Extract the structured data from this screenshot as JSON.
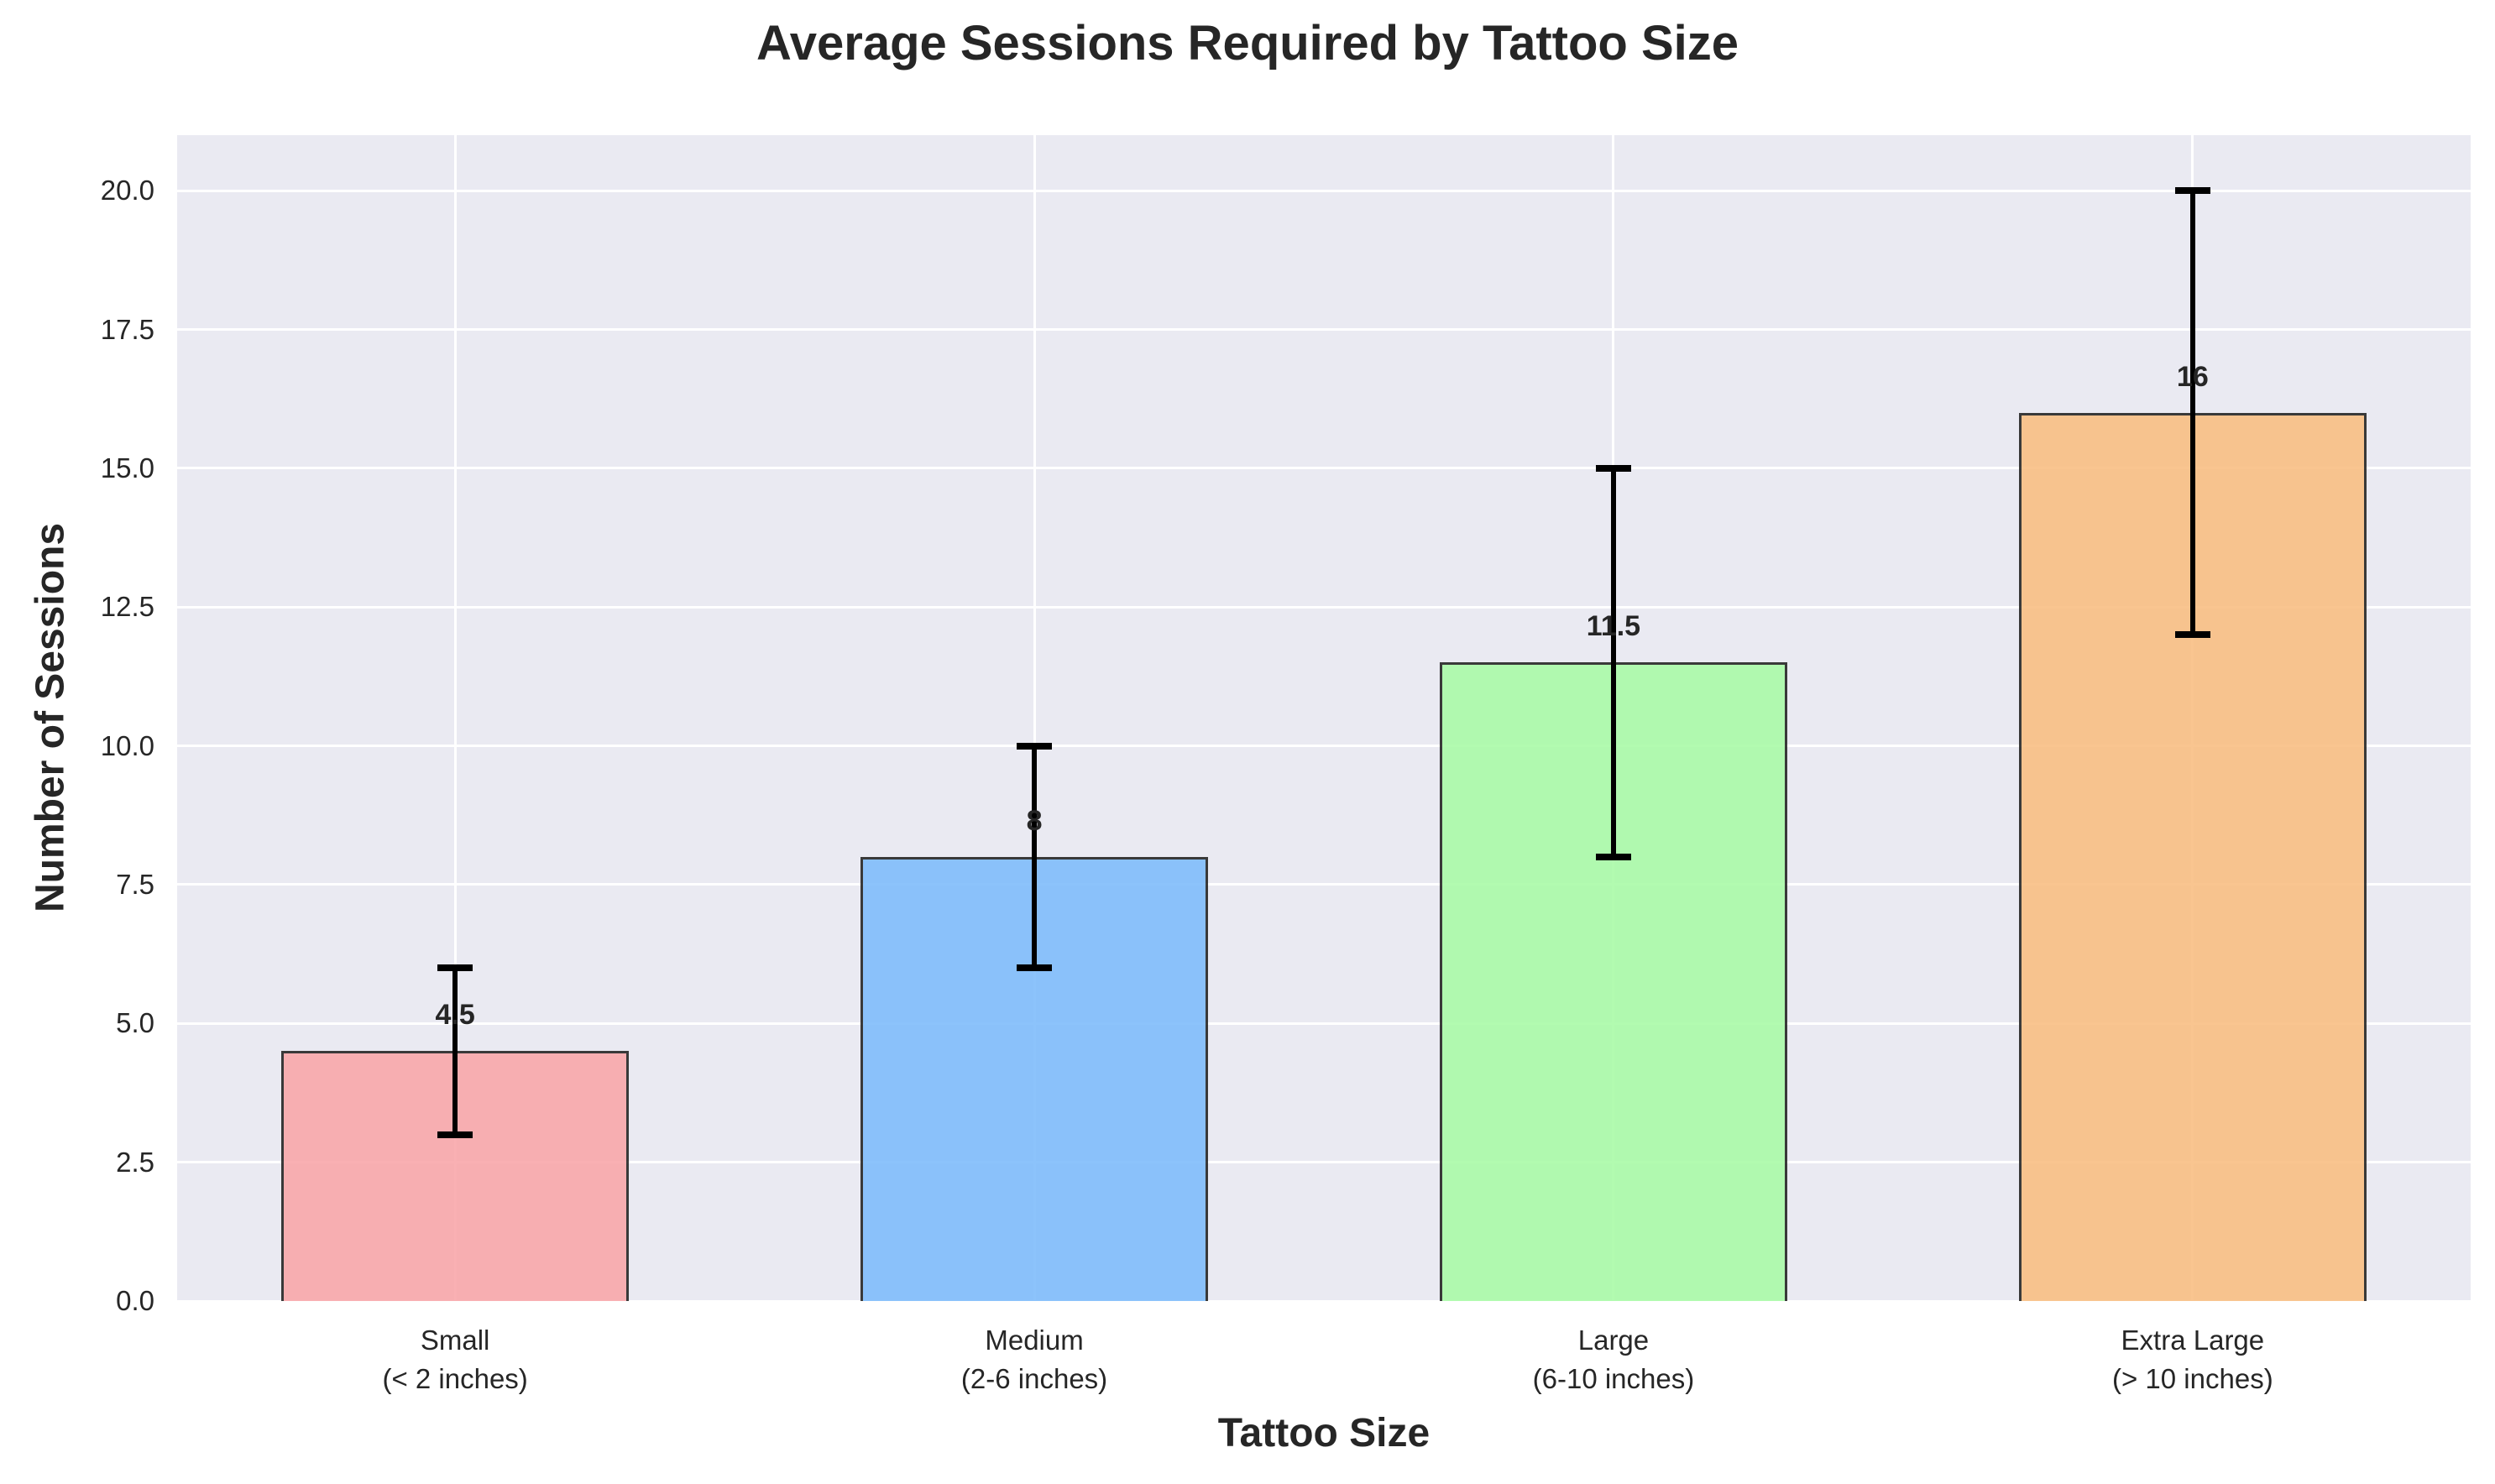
{
  "chart_data": {
    "type": "bar",
    "title": "Average Sessions Required by Tattoo Size",
    "xlabel": "Tattoo Size",
    "ylabel": "Number of Sessions",
    "categories": [
      "Small\n(< 2 inches)",
      "Medium\n(2-6 inches)",
      "Large\n(6-10 inches)",
      "Extra Large\n(> 10 inches)"
    ],
    "category_lines": [
      [
        "Small",
        "(< 2 inches)"
      ],
      [
        "Medium",
        "(2-6 inches)"
      ],
      [
        "Large",
        "(6-10 inches)"
      ],
      [
        "Extra Large",
        "(> 10 inches)"
      ]
    ],
    "values": [
      4.5,
      8,
      11.5,
      16
    ],
    "value_labels": [
      "4.5",
      "8",
      "11.5",
      "16"
    ],
    "error_low": [
      3,
      6,
      8,
      12
    ],
    "error_high": [
      6,
      10,
      15,
      20
    ],
    "colors": [
      "#F9A8AB",
      "#80BDFB",
      "#AAFBA8",
      "#F9BF84"
    ],
    "edge_color": "#262626",
    "ylim": [
      0,
      21
    ],
    "xlim": [
      -0.48,
      3.48
    ],
    "yticks": [
      0.0,
      2.5,
      5.0,
      7.5,
      10.0,
      12.5,
      15.0,
      17.5,
      20.0
    ],
    "ytick_labels": [
      "0.0",
      "2.5",
      "5.0",
      "7.5",
      "10.0",
      "12.5",
      "15.0",
      "17.5",
      "20.0"
    ],
    "grid": true,
    "background": "#EAEAF2",
    "legend": null
  }
}
